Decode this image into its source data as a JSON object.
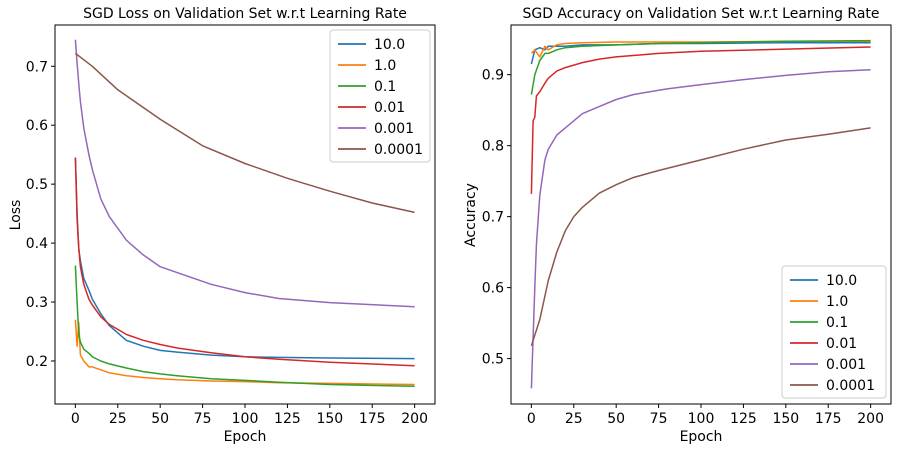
{
  "chart_data": [
    {
      "type": "line",
      "title": "SGD Loss on Validation Set w.r.t Learning Rate",
      "xlabel": "Epoch",
      "ylabel": "Loss",
      "xlim": [
        -12,
        212
      ],
      "ylim": [
        0.127,
        0.77
      ],
      "xticks": [
        0,
        25,
        50,
        75,
        100,
        125,
        150,
        175,
        200
      ],
      "yticks": [
        0.2,
        0.3,
        0.4,
        0.5,
        0.6,
        0.7
      ],
      "ytick_labels": [
        "0.2",
        "0.3",
        "0.4",
        "0.5",
        "0.6",
        "0.7"
      ],
      "legend_position": "top-right",
      "series": [
        {
          "name": "10.0",
          "color": "#1f77b4",
          "x": [
            0,
            1,
            2,
            3,
            5,
            8,
            10,
            15,
            20,
            30,
            40,
            50,
            60,
            80,
            100,
            120,
            150,
            200
          ],
          "y": [
            0.545,
            0.45,
            0.39,
            0.37,
            0.34,
            0.32,
            0.305,
            0.28,
            0.26,
            0.235,
            0.225,
            0.218,
            0.215,
            0.21,
            0.207,
            0.206,
            0.205,
            0.204
          ]
        },
        {
          "name": "1.0",
          "color": "#ff7f0e",
          "x": [
            0,
            1,
            2,
            3,
            5,
            8,
            10,
            15,
            20,
            30,
            40,
            50,
            60,
            80,
            100,
            120,
            150,
            200
          ],
          "y": [
            0.27,
            0.225,
            0.265,
            0.21,
            0.2,
            0.19,
            0.19,
            0.185,
            0.18,
            0.175,
            0.172,
            0.17,
            0.168,
            0.166,
            0.165,
            0.163,
            0.162,
            0.16
          ]
        },
        {
          "name": "0.1",
          "color": "#2ca02c",
          "x": [
            0,
            1,
            2,
            3,
            5,
            8,
            10,
            15,
            20,
            30,
            40,
            50,
            60,
            80,
            100,
            120,
            150,
            200
          ],
          "y": [
            0.362,
            0.3,
            0.245,
            0.232,
            0.22,
            0.213,
            0.207,
            0.2,
            0.195,
            0.188,
            0.182,
            0.178,
            0.175,
            0.17,
            0.167,
            0.164,
            0.16,
            0.157
          ]
        },
        {
          "name": "0.01",
          "color": "#d62728",
          "x": [
            0,
            1,
            2,
            3,
            5,
            8,
            10,
            15,
            20,
            30,
            40,
            50,
            60,
            80,
            100,
            120,
            150,
            200
          ],
          "y": [
            0.545,
            0.44,
            0.39,
            0.36,
            0.33,
            0.305,
            0.295,
            0.275,
            0.262,
            0.245,
            0.235,
            0.228,
            0.222,
            0.214,
            0.207,
            0.203,
            0.198,
            0.192
          ]
        },
        {
          "name": "0.001",
          "color": "#9467bd",
          "x": [
            0,
            1,
            2,
            3,
            5,
            8,
            10,
            15,
            20,
            30,
            40,
            50,
            60,
            80,
            100,
            120,
            150,
            200
          ],
          "y": [
            0.745,
            0.705,
            0.67,
            0.64,
            0.595,
            0.55,
            0.525,
            0.475,
            0.445,
            0.405,
            0.38,
            0.36,
            0.35,
            0.33,
            0.316,
            0.306,
            0.299,
            0.292
          ]
        },
        {
          "name": "0.0001",
          "color": "#8c564b",
          "x": [
            0,
            10,
            25,
            50,
            75,
            100,
            125,
            150,
            175,
            200
          ],
          "y": [
            0.722,
            0.7,
            0.66,
            0.61,
            0.565,
            0.535,
            0.51,
            0.488,
            0.468,
            0.452
          ]
        }
      ]
    },
    {
      "type": "line",
      "title": "SGD Accuracy on Validation Set w.r.t Learning Rate",
      "xlabel": "Epoch",
      "ylabel": "Accuracy",
      "xlim": [
        -12,
        212
      ],
      "ylim": [
        0.436,
        0.97
      ],
      "xticks": [
        0,
        25,
        50,
        75,
        100,
        125,
        150,
        175,
        200
      ],
      "yticks": [
        0.5,
        0.6,
        0.7,
        0.8,
        0.9
      ],
      "ytick_labels": [
        "0.5",
        "0.6",
        "0.7",
        "0.8",
        "0.9"
      ],
      "legend_position": "bottom-right",
      "series": [
        {
          "name": "10.0",
          "color": "#1f77b4",
          "x": [
            0,
            2,
            5,
            8,
            10,
            15,
            20,
            30,
            50,
            75,
            100,
            150,
            200
          ],
          "y": [
            0.915,
            0.935,
            0.938,
            0.935,
            0.94,
            0.94,
            0.94,
            0.942,
            0.942,
            0.944,
            0.944,
            0.945,
            0.945
          ]
        },
        {
          "name": "1.0",
          "color": "#ff7f0e",
          "x": [
            0,
            2,
            5,
            8,
            10,
            15,
            20,
            30,
            50,
            75,
            100,
            150,
            200
          ],
          "y": [
            0.93,
            0.935,
            0.925,
            0.94,
            0.935,
            0.942,
            0.944,
            0.945,
            0.946,
            0.946,
            0.946,
            0.947,
            0.947
          ]
        },
        {
          "name": "0.1",
          "color": "#2ca02c",
          "x": [
            0,
            2,
            5,
            8,
            10,
            15,
            20,
            30,
            50,
            75,
            100,
            150,
            200
          ],
          "y": [
            0.872,
            0.9,
            0.92,
            0.93,
            0.93,
            0.935,
            0.938,
            0.94,
            0.942,
            0.944,
            0.945,
            0.947,
            0.948
          ]
        },
        {
          "name": "0.01",
          "color": "#d62728",
          "x": [
            0,
            1,
            2,
            3,
            5,
            8,
            10,
            15,
            20,
            30,
            40,
            50,
            75,
            100,
            150,
            200
          ],
          "y": [
            0.732,
            0.835,
            0.84,
            0.87,
            0.876,
            0.888,
            0.895,
            0.905,
            0.91,
            0.917,
            0.922,
            0.925,
            0.93,
            0.933,
            0.936,
            0.939
          ]
        },
        {
          "name": "0.001",
          "color": "#9467bd",
          "x": [
            0,
            1,
            2,
            3,
            5,
            8,
            10,
            15,
            20,
            30,
            40,
            50,
            60,
            80,
            100,
            125,
            150,
            175,
            200
          ],
          "y": [
            0.458,
            0.53,
            0.6,
            0.66,
            0.73,
            0.78,
            0.795,
            0.815,
            0.825,
            0.845,
            0.855,
            0.865,
            0.872,
            0.88,
            0.886,
            0.893,
            0.899,
            0.904,
            0.907
          ]
        },
        {
          "name": "0.0001",
          "color": "#8c564b",
          "x": [
            0,
            5,
            10,
            15,
            20,
            25,
            30,
            40,
            50,
            60,
            75,
            100,
            125,
            150,
            175,
            200
          ],
          "y": [
            0.518,
            0.555,
            0.61,
            0.65,
            0.68,
            0.7,
            0.713,
            0.733,
            0.745,
            0.755,
            0.765,
            0.78,
            0.795,
            0.808,
            0.816,
            0.825
          ]
        }
      ]
    }
  ]
}
